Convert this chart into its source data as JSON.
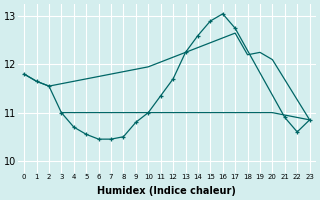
{
  "xlabel": "Humidex (Indice chaleur)",
  "bg_color": "#d4eeee",
  "grid_color": "#ffffff",
  "line_color": "#006666",
  "xlim": [
    -0.5,
    23.5
  ],
  "ylim": [
    9.75,
    13.25
  ],
  "xticks": [
    0,
    1,
    2,
    3,
    4,
    5,
    6,
    7,
    8,
    9,
    10,
    11,
    12,
    13,
    14,
    15,
    16,
    17,
    18,
    19,
    20,
    21,
    22,
    23
  ],
  "yticks": [
    10,
    11,
    12,
    13
  ],
  "line_valley": {
    "x": [
      0,
      1,
      2,
      3,
      4,
      5,
      6,
      7,
      8,
      9,
      10,
      11,
      12,
      13,
      14,
      15,
      16,
      17,
      21,
      22,
      23
    ],
    "y": [
      11.8,
      11.65,
      11.55,
      11.0,
      10.7,
      10.55,
      10.45,
      10.45,
      10.5,
      10.8,
      11.0,
      11.35,
      11.7,
      12.25,
      12.6,
      12.9,
      13.05,
      12.75,
      10.9,
      10.6,
      10.85
    ]
  },
  "line_diagonal": {
    "x": [
      0,
      1,
      2,
      10,
      11,
      12,
      13,
      14,
      15,
      16,
      17,
      18,
      19,
      20,
      23
    ],
    "y": [
      11.8,
      11.65,
      11.55,
      11.95,
      12.05,
      12.15,
      12.25,
      12.35,
      12.45,
      12.55,
      12.65,
      12.2,
      12.25,
      12.1,
      10.85
    ]
  },
  "line_flat": {
    "x": [
      3,
      10,
      18,
      19,
      20,
      23
    ],
    "y": [
      11.0,
      11.0,
      11.0,
      11.0,
      11.0,
      10.85
    ]
  }
}
